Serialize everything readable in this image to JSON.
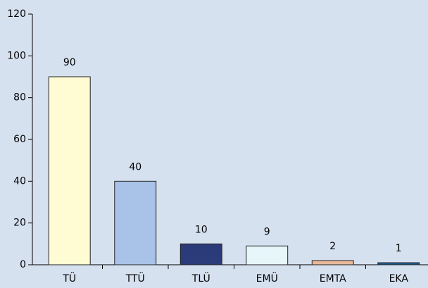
{
  "chart_data": {
    "type": "bar",
    "categories": [
      "TÜ",
      "TTÜ",
      "TLÜ",
      "EMÜ",
      "EMTA",
      "EKA"
    ],
    "values": [
      90,
      40,
      10,
      9,
      2,
      1
    ],
    "colors": [
      "#fffbd2",
      "#a9c3e8",
      "#2b3a78",
      "#e6f6fb",
      "#e8b898",
      "#1c5a8e"
    ],
    "ylim": [
      0,
      120
    ],
    "yticks": [
      0,
      20,
      40,
      60,
      80,
      100,
      120
    ],
    "grid": false
  }
}
